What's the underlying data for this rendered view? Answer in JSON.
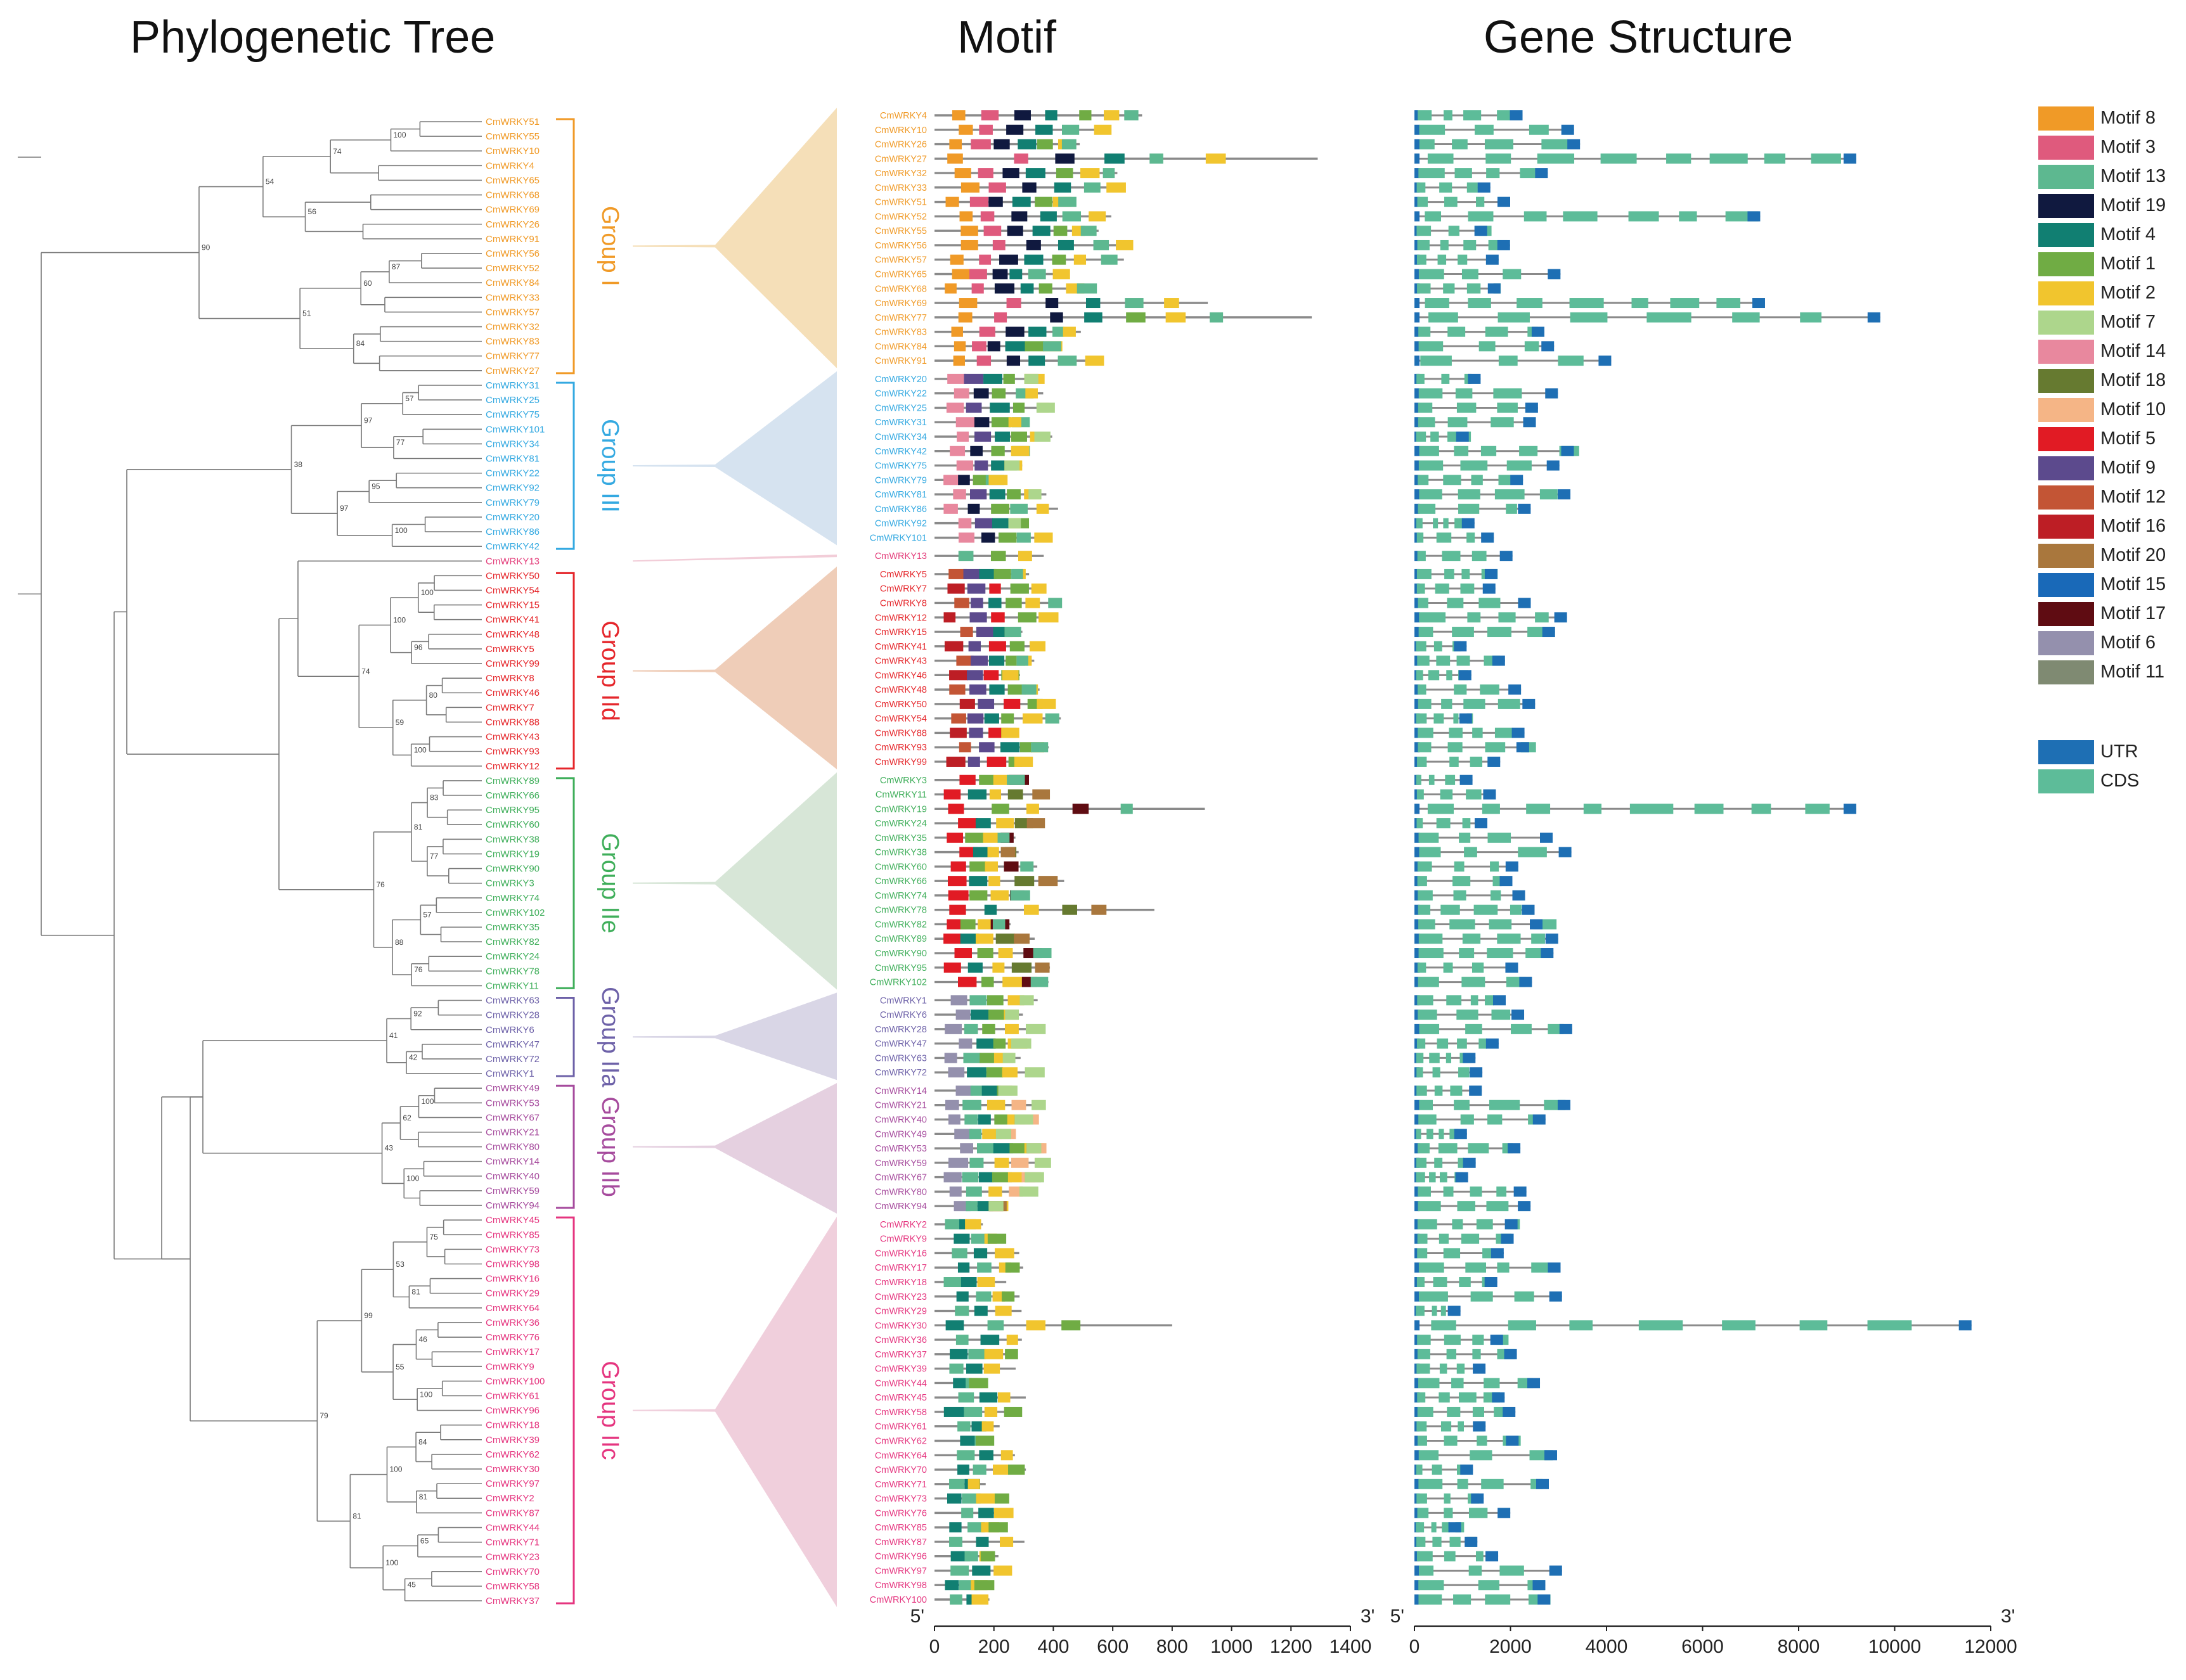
{
  "titles": {
    "tree": "Phylogenetic Tree",
    "motif": "Motif",
    "gene": "Gene Structure"
  },
  "groups": [
    {
      "id": "I",
      "label": "Group I",
      "color": "#f09a27",
      "band": "#f5dfb8",
      "tree": [
        "CmWRKY51",
        "CmWRKY55",
        "CmWRKY10",
        "CmWRKY4",
        "CmWRKY65",
        "CmWRKY68",
        "CmWRKY69",
        "CmWRKY26",
        "CmWRKY91",
        "CmWRKY56",
        "CmWRKY52",
        "CmWRKY84",
        "CmWRKY33",
        "CmWRKY57",
        "CmWRKY32",
        "CmWRKY83",
        "CmWRKY77",
        "CmWRKY27"
      ],
      "genes": [
        "CmWRKY4",
        "CmWRKY10",
        "CmWRKY26",
        "CmWRKY27",
        "CmWRKY32",
        "CmWRKY33",
        "CmWRKY51",
        "CmWRKY52",
        "CmWRKY55",
        "CmWRKY56",
        "CmWRKY57",
        "CmWRKY65",
        "CmWRKY68",
        "CmWRKY69",
        "CmWRKY77",
        "CmWRKY83",
        "CmWRKY84",
        "CmWRKY91"
      ]
    },
    {
      "id": "III",
      "label": "Group III",
      "color": "#34a9e1",
      "band": "#d6e3f0",
      "tree": [
        "CmWRKY31",
        "CmWRKY25",
        "CmWRKY75",
        "CmWRKY101",
        "CmWRKY34",
        "CmWRKY81",
        "CmWRKY22",
        "CmWRKY92",
        "CmWRKY79",
        "CmWRKY20",
        "CmWRKY86",
        "CmWRKY42"
      ],
      "genes": [
        "CmWRKY20",
        "CmWRKY22",
        "CmWRKY25",
        "CmWRKY31",
        "CmWRKY34",
        "CmWRKY42",
        "CmWRKY75",
        "CmWRKY79",
        "CmWRKY81",
        "CmWRKY86",
        "CmWRKY92",
        "CmWRKY101"
      ]
    },
    {
      "id": "X",
      "label": "",
      "color": "#e33d7a",
      "band": "#f2cdd8",
      "tree": [
        "CmWRKY13"
      ],
      "genes": [
        "CmWRKY13"
      ]
    },
    {
      "id": "IId",
      "label": "Group IId",
      "color": "#e5262b",
      "band": "#efcdb8",
      "tree": [
        "CmWRKY50",
        "CmWRKY54",
        "CmWRKY15",
        "CmWRKY41",
        "CmWRKY48",
        "CmWRKY5",
        "CmWRKY99",
        "CmWRKY8",
        "CmWRKY46",
        "CmWRKY7",
        "CmWRKY88",
        "CmWRKY43",
        "CmWRKY93",
        "CmWRKY12"
      ],
      "genes": [
        "CmWRKY5",
        "CmWRKY7",
        "CmWRKY8",
        "CmWRKY12",
        "CmWRKY15",
        "CmWRKY41",
        "CmWRKY43",
        "CmWRKY46",
        "CmWRKY48",
        "CmWRKY50",
        "CmWRKY54",
        "CmWRKY88",
        "CmWRKY93",
        "CmWRKY99"
      ]
    },
    {
      "id": "IIe",
      "label": "Group IIe",
      "color": "#3fae5a",
      "band": "#d7e6d7",
      "tree": [
        "CmWRKY89",
        "CmWRKY66",
        "CmWRKY95",
        "CmWRKY60",
        "CmWRKY38",
        "CmWRKY19",
        "CmWRKY90",
        "CmWRKY3",
        "CmWRKY74",
        "CmWRKY102",
        "CmWRKY35",
        "CmWRKY82",
        "CmWRKY24",
        "CmWRKY78",
        "CmWRKY11"
      ],
      "genes": [
        "CmWRKY3",
        "CmWRKY11",
        "CmWRKY19",
        "CmWRKY24",
        "CmWRKY35",
        "CmWRKY38",
        "CmWRKY60",
        "CmWRKY66",
        "CmWRKY74",
        "CmWRKY78",
        "CmWRKY82",
        "CmWRKY89",
        "CmWRKY90",
        "CmWRKY95",
        "CmWRKY102"
      ]
    },
    {
      "id": "IIa",
      "label": "Group IIa",
      "color": "#6d61a8",
      "band": "#d9d6e6",
      "tree": [
        "CmWRKY63",
        "CmWRKY28",
        "CmWRKY6",
        "CmWRKY47",
        "CmWRKY72",
        "CmWRKY1"
      ],
      "genes": [
        "CmWRKY1",
        "CmWRKY6",
        "CmWRKY28",
        "CmWRKY47",
        "CmWRKY63",
        "CmWRKY72"
      ]
    },
    {
      "id": "IIb",
      "label": "Group IIb",
      "color": "#a64b9d",
      "band": "#e5d0e0",
      "tree": [
        "CmWRKY49",
        "CmWRKY53",
        "CmWRKY67",
        "CmWRKY21",
        "CmWRKY80",
        "CmWRKY14",
        "CmWRKY40",
        "CmWRKY59",
        "CmWRKY94"
      ],
      "genes": [
        "CmWRKY14",
        "CmWRKY21",
        "CmWRKY40",
        "CmWRKY49",
        "CmWRKY53",
        "CmWRKY59",
        "CmWRKY67",
        "CmWRKY80",
        "CmWRKY94"
      ]
    },
    {
      "id": "IIc",
      "label": "Group IIc",
      "color": "#e5357f",
      "band": "#f0cfdc",
      "tree": [
        "CmWRKY45",
        "CmWRKY85",
        "CmWRKY73",
        "CmWRKY98",
        "CmWRKY16",
        "CmWRKY29",
        "CmWRKY64",
        "CmWRKY36",
        "CmWRKY76",
        "CmWRKY17",
        "CmWRKY9",
        "CmWRKY100",
        "CmWRKY61",
        "CmWRKY96",
        "CmWRKY18",
        "CmWRKY39",
        "CmWRKY62",
        "CmWRKY30",
        "CmWRKY97",
        "CmWRKY2",
        "CmWRKY87",
        "CmWRKY44",
        "CmWRKY71",
        "CmWRKY23",
        "CmWRKY70",
        "CmWRKY58",
        "CmWRKY37"
      ],
      "genes": [
        "CmWRKY2",
        "CmWRKY9",
        "CmWRKY16",
        "CmWRKY17",
        "CmWRKY18",
        "CmWRKY23",
        "CmWRKY29",
        "CmWRKY30",
        "CmWRKY36",
        "CmWRKY37",
        "CmWRKY39",
        "CmWRKY44",
        "CmWRKY45",
        "CmWRKY58",
        "CmWRKY61",
        "CmWRKY62",
        "CmWRKY64",
        "CmWRKY70",
        "CmWRKY71",
        "CmWRKY73",
        "CmWRKY76",
        "CmWRKY85",
        "CmWRKY87",
        "CmWRKY96",
        "CmWRKY97",
        "CmWRKY98",
        "CmWRKY100"
      ]
    }
  ],
  "bootstrap": [
    "100",
    "74",
    "56",
    "54",
    "87",
    "60",
    "84",
    "51",
    "90",
    "57",
    "77",
    "97",
    "95",
    "100",
    "97",
    "38",
    "100",
    "96",
    "100",
    "80",
    "100",
    "59",
    "74",
    "83",
    "77",
    "81",
    "57",
    "76",
    "88",
    "76",
    "92",
    "42",
    "41",
    "100",
    "62",
    "100",
    "43",
    "75",
    "81",
    "53",
    "46",
    "100",
    "55",
    "99",
    "84",
    "81",
    "100",
    "65",
    "45",
    "100",
    "81",
    "79",
    "36",
    "99",
    "81",
    "99",
    "85",
    "99",
    "77",
    "93",
    "97",
    "73",
    "94",
    "78",
    "100",
    "64",
    "66",
    "100",
    "91",
    "60",
    "55",
    "26",
    "100",
    "68",
    "100",
    "96",
    "26",
    "95",
    "34",
    "97",
    "92",
    "27",
    "96",
    "81",
    "58",
    "31",
    "68",
    "53",
    "23",
    "65",
    "93",
    "53",
    "22",
    "91",
    "100",
    "64"
  ],
  "legend": {
    "motifs": [
      {
        "label": "Motif 8",
        "color": "#f09a27"
      },
      {
        "label": "Motif 3",
        "color": "#df5a7d"
      },
      {
        "label": "Motif 13",
        "color": "#5db890"
      },
      {
        "label": "Motif 19",
        "color": "#10193f"
      },
      {
        "label": "Motif 4",
        "color": "#117f72"
      },
      {
        "label": "Motif 1",
        "color": "#70ac44"
      },
      {
        "label": "Motif 2",
        "color": "#f1c52e"
      },
      {
        "label": "Motif 7",
        "color": "#add68c"
      },
      {
        "label": "Motif 14",
        "color": "#e8889e"
      },
      {
        "label": "Motif 18",
        "color": "#667a30"
      },
      {
        "label": "Motif 10",
        "color": "#f5b586"
      },
      {
        "label": "Motif 5",
        "color": "#e11b24"
      },
      {
        "label": "Motif 9",
        "color": "#5c4a8d"
      },
      {
        "label": "Motif 12",
        "color": "#c35535"
      },
      {
        "label": "Motif 16",
        "color": "#bd1e25"
      },
      {
        "label": "Motif 20",
        "color": "#a9773d"
      },
      {
        "label": "Motif 15",
        "color": "#1969b8"
      },
      {
        "label": "Motif 17",
        "color": "#5f0c12"
      },
      {
        "label": "Motif 6",
        "color": "#9490ad"
      },
      {
        "label": "Motif 11",
        "color": "#7f8a72"
      }
    ],
    "structure": [
      {
        "label": "UTR",
        "color": "#1e6fb4"
      },
      {
        "label": "CDS",
        "color": "#5dbc99"
      }
    ]
  },
  "axes": {
    "motif": {
      "start_label": "5'",
      "end_label": "3'",
      "min": 0,
      "max": 1400,
      "ticks": [
        "0",
        "200",
        "400",
        "600",
        "800",
        "1000",
        "1200",
        "1400"
      ]
    },
    "gene": {
      "start_label": "5'",
      "end_label": "3'",
      "min": 0,
      "max": 12000,
      "ticks": [
        "0",
        "2000",
        "4000",
        "6000",
        "8000",
        "10000",
        "12000"
      ]
    }
  },
  "chart_data": {
    "type": "diagram",
    "title_left": "Phylogenetic Tree",
    "title_middle": "Motif",
    "title_right": "Gene Structure",
    "motif_axis_range": [
      0,
      1400
    ],
    "gene_axis_range": [
      0,
      12000
    ],
    "notable_lengths": {
      "motif_aa": {
        "CmWRKY27": 1290,
        "CmWRKY77": 1270,
        "CmWRKY69": 920,
        "CmWRKY19": 910,
        "CmWRKY30": 800,
        "CmWRKY78": 740
      },
      "gene_bp": {
        "CmWRKY30": 11600,
        "CmWRKY77": 9700,
        "CmWRKY19": 9200,
        "CmWRKY27": 9200,
        "CmWRKY69": 7300,
        "CmWRKY52": 7200
      }
    }
  }
}
